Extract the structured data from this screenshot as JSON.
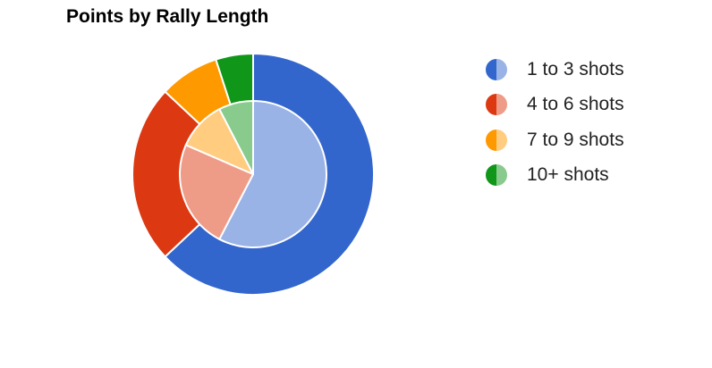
{
  "chart_data": {
    "type": "pie",
    "subtype": "nested-donut",
    "title": "Points by Rally Length",
    "categories": [
      "1 to 3 shots",
      "4 to 6 shots",
      "7 to 9 shots",
      "10+ shots"
    ],
    "series": [
      {
        "ring": "outer",
        "values": [
          63,
          24,
          8,
          5
        ],
        "colors": [
          "#3366cc",
          "#dc3912",
          "#ff9900",
          "#109618"
        ]
      },
      {
        "ring": "inner",
        "values": [
          53,
          22,
          10,
          7
        ],
        "colors": [
          "#99b3e6",
          "#ee9c88",
          "#ffcc80",
          "#88cb8c"
        ]
      }
    ],
    "legend": {
      "position": "right",
      "entries": [
        {
          "label": "1 to 3 shots",
          "colors": [
            "#3366cc",
            "#99b3e6"
          ]
        },
        {
          "label": "4 to 6 shots",
          "colors": [
            "#dc3912",
            "#ee9c88"
          ]
        },
        {
          "label": "7 to 9 shots",
          "colors": [
            "#ff9900",
            "#ffcc80"
          ]
        },
        {
          "label": "10+ shots",
          "colors": [
            "#109618",
            "#88cb8c"
          ]
        }
      ]
    },
    "slice_border_color": "#ffffff"
  }
}
